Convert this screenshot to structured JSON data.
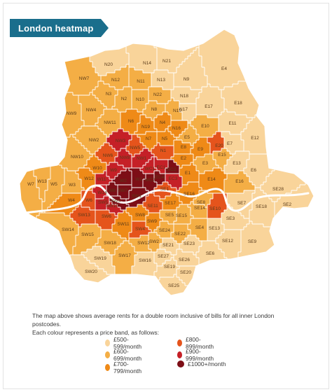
{
  "title": "London heatmap",
  "description_line1": "The map above shows average rents for a double room inclusive of bills for all inner London postcodes.",
  "description_line2": "Each colour represents a price band, as follows:",
  "legend": [
    {
      "label": "£500-599/month",
      "color": "#f9d49a"
    },
    {
      "label": "£600-699/month",
      "color": "#f4ae45"
    },
    {
      "label": "£700-799/month",
      "color": "#ef8a17"
    },
    {
      "label": "£800-899/month",
      "color": "#e5541c"
    },
    {
      "label": "£900-999/month",
      "color": "#c52027"
    },
    {
      "label": "£1000+/month",
      "color": "#7d0e16"
    }
  ],
  "districts": [
    {
      "code": "N20",
      "band": 0
    },
    {
      "code": "N14",
      "band": 0
    },
    {
      "code": "N21",
      "band": 0
    },
    {
      "code": "E4",
      "band": 0
    },
    {
      "code": "NW7",
      "band": 1
    },
    {
      "code": "N12",
      "band": 1
    },
    {
      "code": "N11",
      "band": 1
    },
    {
      "code": "N13",
      "band": 0
    },
    {
      "code": "N9",
      "band": 0
    },
    {
      "code": "N3",
      "band": 1
    },
    {
      "code": "N2",
      "band": 1
    },
    {
      "code": "N22",
      "band": 1
    },
    {
      "code": "N18",
      "band": 0
    },
    {
      "code": "N17",
      "band": 0
    },
    {
      "code": "NW9",
      "band": 1
    },
    {
      "code": "NW4",
      "band": 1
    },
    {
      "code": "N10",
      "band": 1
    },
    {
      "code": "N8",
      "band": 1
    },
    {
      "code": "N15",
      "band": 1
    },
    {
      "code": "E17",
      "band": 0
    },
    {
      "code": "E18",
      "band": 0
    },
    {
      "code": "NW11",
      "band": 1
    },
    {
      "code": "N6",
      "band": 2
    },
    {
      "code": "N19",
      "band": 2
    },
    {
      "code": "N4",
      "band": 2
    },
    {
      "code": "N16",
      "band": 2
    },
    {
      "code": "E10",
      "band": 1
    },
    {
      "code": "E11",
      "band": 0
    },
    {
      "code": "NW3",
      "band": 4
    },
    {
      "code": "N7",
      "band": 2
    },
    {
      "code": "N5",
      "band": 2
    },
    {
      "code": "E5",
      "band": 1
    },
    {
      "code": "E7",
      "band": 0
    },
    {
      "code": "E12",
      "band": 0
    },
    {
      "code": "NW2",
      "band": 1
    },
    {
      "code": "NW6",
      "band": 3
    },
    {
      "code": "NW5",
      "band": 3
    },
    {
      "code": "N1",
      "band": 3
    },
    {
      "code": "E8",
      "band": 2
    },
    {
      "code": "E9",
      "band": 2
    },
    {
      "code": "E20",
      "band": 3
    },
    {
      "code": "E15",
      "band": 1
    },
    {
      "code": "NW10",
      "band": 1
    },
    {
      "code": "NW8",
      "band": 4
    },
    {
      "code": "NW1",
      "band": 4
    },
    {
      "code": "WC1",
      "band": 4
    },
    {
      "code": "EC1",
      "band": 4
    },
    {
      "code": "E2",
      "band": 2
    },
    {
      "code": "E3",
      "band": 1
    },
    {
      "code": "E13",
      "band": 0
    },
    {
      "code": "E6",
      "band": 0
    },
    {
      "code": "W9",
      "band": 4
    },
    {
      "code": "W2",
      "band": 5
    },
    {
      "code": "W1",
      "band": 5
    },
    {
      "code": "WC2",
      "band": 5
    },
    {
      "code": "EC4",
      "band": 5
    },
    {
      "code": "EC2",
      "band": 5
    },
    {
      "code": "EC3",
      "band": 4
    },
    {
      "code": "E1",
      "band": 2
    },
    {
      "code": "E14",
      "band": 2
    },
    {
      "code": "E16",
      "band": 1
    },
    {
      "code": "W7",
      "band": 1
    },
    {
      "code": "W13",
      "band": 1
    },
    {
      "code": "W5",
      "band": 1
    },
    {
      "code": "W3",
      "band": 1
    },
    {
      "code": "W12",
      "band": 2
    },
    {
      "code": "W11",
      "band": 4
    },
    {
      "code": "W10",
      "band": 2
    },
    {
      "code": "W14",
      "band": 4
    },
    {
      "code": "W8",
      "band": 5
    },
    {
      "code": "SW7",
      "band": 5
    },
    {
      "code": "SW3",
      "band": 5
    },
    {
      "code": "SW1",
      "band": 5
    },
    {
      "code": "SW10",
      "band": 4
    },
    {
      "code": "SW5",
      "band": 4
    },
    {
      "code": "W6",
      "band": 3
    },
    {
      "code": "W4",
      "band": 2
    },
    {
      "code": "SE1",
      "band": 3
    },
    {
      "code": "SE16",
      "band": 2
    },
    {
      "code": "SE10",
      "band": 3
    },
    {
      "code": "SE7",
      "band": 0
    },
    {
      "code": "SE18",
      "band": 0
    },
    {
      "code": "SE28",
      "band": 0
    },
    {
      "code": "SE2",
      "band": 0
    },
    {
      "code": "SW13",
      "band": 3
    },
    {
      "code": "SW6",
      "band": 3
    },
    {
      "code": "SW11",
      "band": 2
    },
    {
      "code": "SW8",
      "band": 2
    },
    {
      "code": "SE11",
      "band": 3
    },
    {
      "code": "SE17",
      "band": 2
    },
    {
      "code": "SE5",
      "band": 1
    },
    {
      "code": "SE15",
      "band": 1
    },
    {
      "code": "SE14",
      "band": 1
    },
    {
      "code": "SE8",
      "band": 1
    },
    {
      "code": "SE3",
      "band": 0
    },
    {
      "code": "SE9",
      "band": 0
    },
    {
      "code": "SW14",
      "band": 1
    },
    {
      "code": "SW15",
      "band": 1
    },
    {
      "code": "SW18",
      "band": 1
    },
    {
      "code": "SW4",
      "band": 3
    },
    {
      "code": "SW9",
      "band": 2
    },
    {
      "code": "SW2",
      "band": 1
    },
    {
      "code": "SE24",
      "band": 1
    },
    {
      "code": "SE22",
      "band": 1
    },
    {
      "code": "SE4",
      "band": 1
    },
    {
      "code": "SE13",
      "band": 0
    },
    {
      "code": "SE12",
      "band": 0
    },
    {
      "code": "SW19",
      "band": 0
    },
    {
      "code": "SW17",
      "band": 1
    },
    {
      "code": "SW12",
      "band": 1
    },
    {
      "code": "SE21",
      "band": 0
    },
    {
      "code": "SE23",
      "band": 0
    },
    {
      "code": "SE6",
      "band": 0
    },
    {
      "code": "SW20",
      "band": 0
    },
    {
      "code": "SW16",
      "band": 0
    },
    {
      "code": "SE27",
      "band": 0
    },
    {
      "code": "SE19",
      "band": 0
    },
    {
      "code": "SE26",
      "band": 0
    },
    {
      "code": "SE20",
      "band": 0
    },
    {
      "code": "SE25",
      "band": 0
    }
  ]
}
